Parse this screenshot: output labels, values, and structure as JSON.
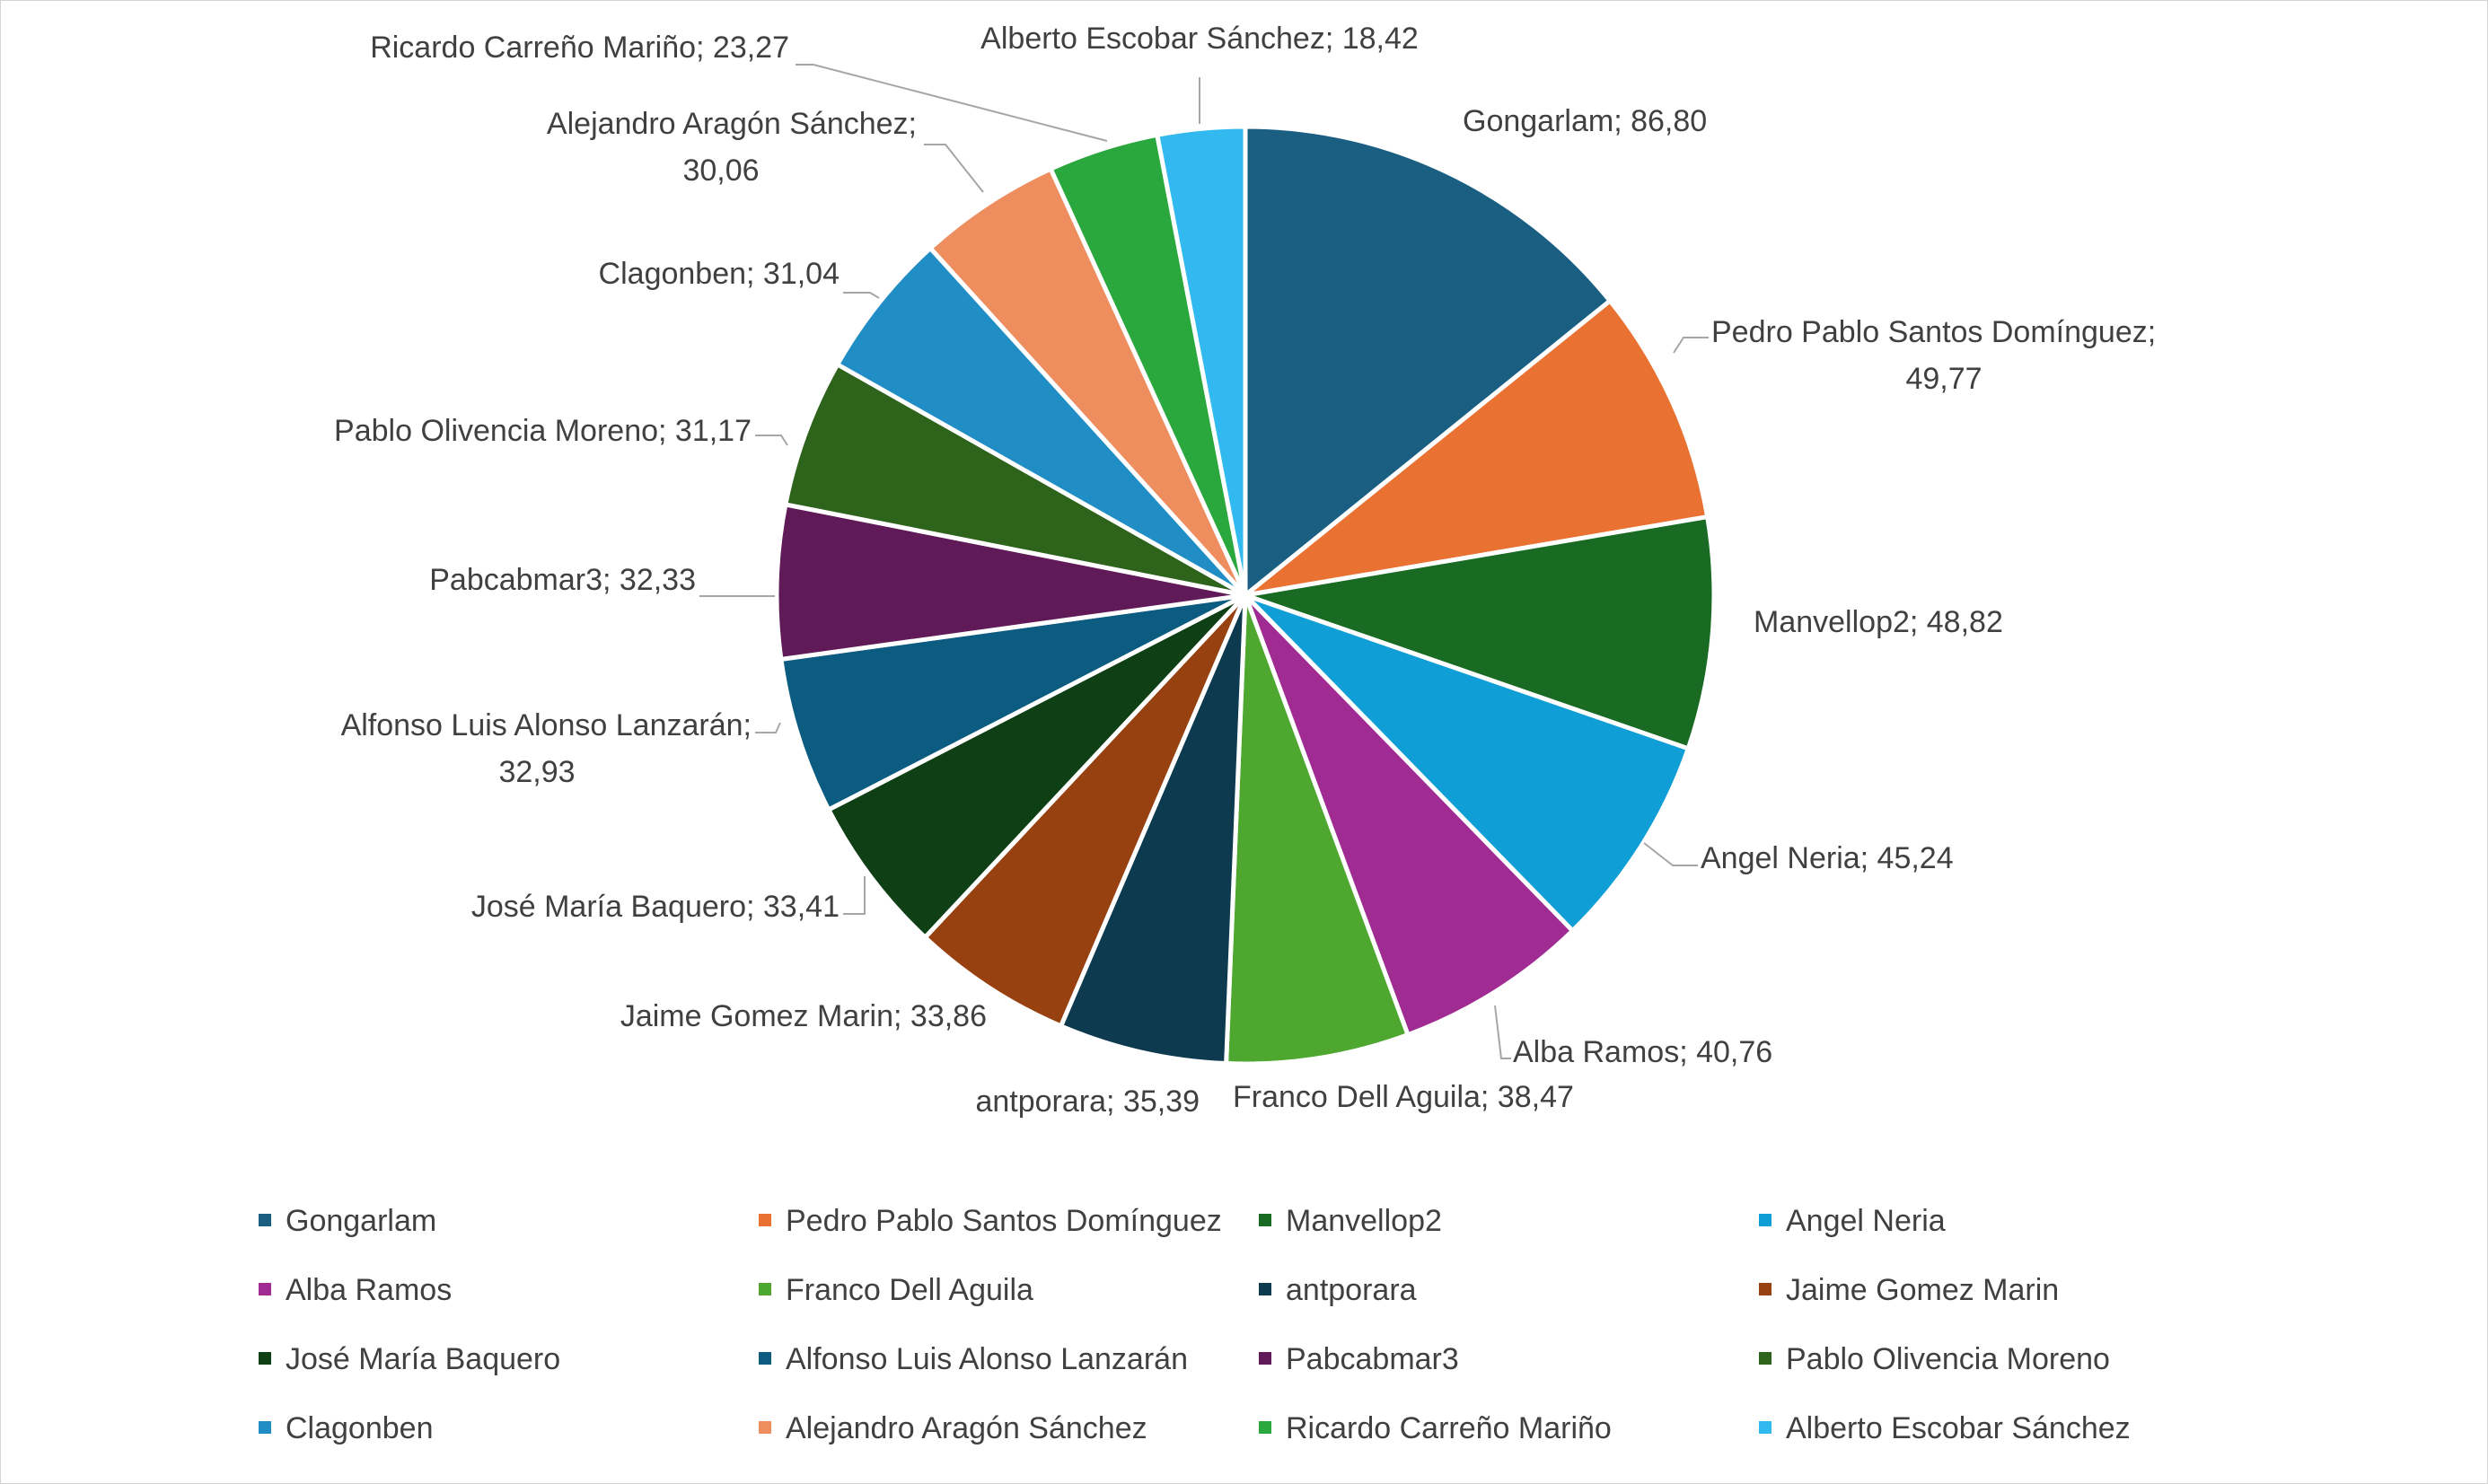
{
  "chart_data": {
    "type": "pie",
    "title": "",
    "legend_position": "bottom",
    "slices": [
      {
        "label": "Gongarlam",
        "value": 86.8,
        "value_text": "86,80",
        "color": "#1a5f82"
      },
      {
        "label": "Pedro Pablo Santos Domínguez",
        "value": 49.77,
        "value_text": "49,77",
        "color": "#e97132"
      },
      {
        "label": "Manvellop2",
        "value": 48.82,
        "value_text": "48,82",
        "color": "#196b24"
      },
      {
        "label": "Angel Neria",
        "value": 45.24,
        "value_text": "45,24",
        "color": "#0f9ed5"
      },
      {
        "label": "Alba Ramos",
        "value": 40.76,
        "value_text": "40,76",
        "color": "#a02b93"
      },
      {
        "label": "Franco Dell Aguila",
        "value": 38.47,
        "value_text": "38,47",
        "color": "#4ea72e"
      },
      {
        "label": "antporara",
        "value": 35.39,
        "value_text": "35,39",
        "color": "#0e3a50"
      },
      {
        "label": "Jaime Gomez Marin",
        "value": 33.86,
        "value_text": "33,86",
        "color": "#974110"
      },
      {
        "label": "José María Baquero",
        "value": 33.41,
        "value_text": "33,41",
        "color": "#0f4015"
      },
      {
        "label": "Alfonso Luis Alonso Lanzarán",
        "value": 32.93,
        "value_text": "32,93",
        "color": "#0b5c80"
      },
      {
        "label": "Pabcabmar3",
        "value": 32.33,
        "value_text": "32,33",
        "color": "#601a58"
      },
      {
        "label": "Pablo Olivencia Moreno",
        "value": 31.17,
        "value_text": "31,17",
        "color": "#2e631c"
      },
      {
        "label": "Clagonben",
        "value": 31.04,
        "value_text": "31,04",
        "color": "#218dc5"
      },
      {
        "label": "Alejandro Aragón Sánchez",
        "value": 30.06,
        "value_text": "30,06",
        "color": "#ee8e5f"
      },
      {
        "label": "Ricardo Carreño Mariño",
        "value": 23.27,
        "value_text": "23,27",
        "color": "#2aa83e"
      },
      {
        "label": "Alberto Escobar Sánchez",
        "value": 18.42,
        "value_text": "18,42",
        "color": "#32baf0"
      }
    ]
  }
}
